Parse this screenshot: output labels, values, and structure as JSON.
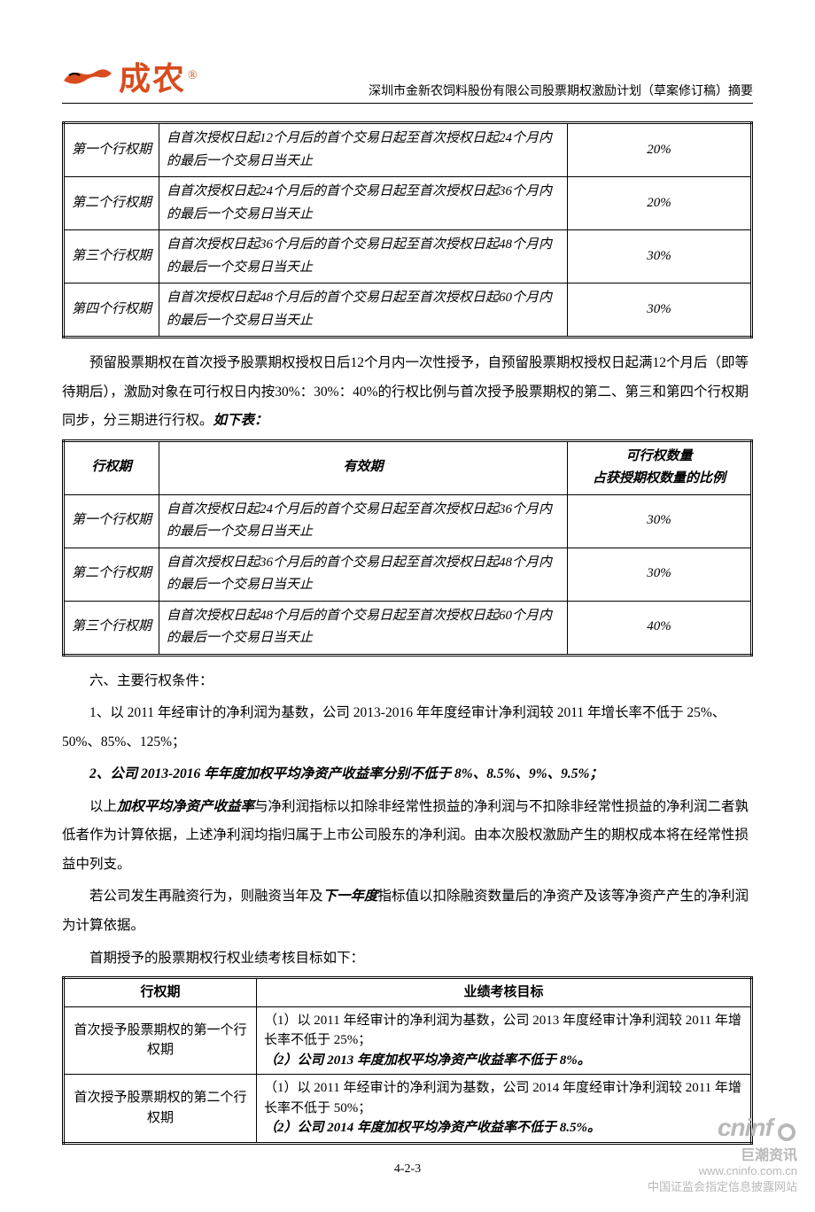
{
  "colors": {
    "logo_orange": "#d84c1e",
    "text": "#000000",
    "watermark": "#b8b8b8",
    "background": "#ffffff",
    "border": "#000000"
  },
  "header": {
    "logo_text": "成农",
    "logo_r": "®",
    "doc_title": "深圳市金新农饲料股份有限公司股票期权激励计划（草案修订稿）摘要"
  },
  "table1": {
    "rows": [
      {
        "period": "第一个行权期",
        "desc": "自首次授权日起12个月后的首个交易日起至首次授权日起24个月内的最后一个交易日当天止",
        "pct": "20%"
      },
      {
        "period": "第二个行权期",
        "desc": "自首次授权日起24个月后的首个交易日起至首次授权日起36个月内的最后一个交易日当天止",
        "pct": "20%"
      },
      {
        "period": "第三个行权期",
        "desc": "自首次授权日起36个月后的首个交易日起至首次授权日起48个月内的最后一个交易日当天止",
        "pct": "30%"
      },
      {
        "period": "第四个行权期",
        "desc": "自首次授权日起48个月后的首个交易日起至首次授权日起60个月内的最后一个交易日当天止",
        "pct": "30%"
      }
    ]
  },
  "para1": {
    "text_a": "预留股票期权在首次授予股票期权授权日后12个月内一次性授予，自预留股票期权授权日起满12个月后（即等待期后），激励对象在可行权日内按30%：30%：40%的行权比例与首次授予股票期权的第二、第三和第四个行权期同步，分三期进行行权。",
    "tail": "如下表："
  },
  "table2": {
    "head": {
      "c1": "行权期",
      "c2": "有效期",
      "c3a": "可行权数量",
      "c3b": "占获授期权数量的比例"
    },
    "rows": [
      {
        "period": "第一个行权期",
        "desc": "自首次授权日起24个月后的首个交易日起至首次授权日起36个月内的最后一个交易日当天止",
        "pct": "30%"
      },
      {
        "period": "第二个行权期",
        "desc": "自首次授权日起36个月后的首个交易日起至首次授权日起48个月内的最后一个交易日当天止",
        "pct": "30%"
      },
      {
        "period": "第三个行权期",
        "desc": "自首次授权日起48个月后的首个交易日起至首次授权日起60个月内的最后一个交易日当天止",
        "pct": "40%"
      }
    ]
  },
  "section6_title": "六、主要行权条件：",
  "item1": "1、以 2011 年经审计的净利润为基数，公司 2013-2016 年年度经审计净利润较 2011 年增长率不低于 25%、50%、85%、125%；",
  "item2_bold": "2、公司 2013-2016 年年度加权平均净资产收益率分别不低于 8%、8.5%、9%、9.5%；",
  "para_after_a": "以上",
  "para_after_bold": "加权平均净资产收益率",
  "para_after_b": "与净利润指标以扣除非经常性损益的净利润与不扣除非经常性损益的净利润二者孰低者作为计算依据，上述净利润均指归属于上市公司股东的净利润。由本次股权激励产生的期权成本将在经常性损益中列支。",
  "para_refinance_a": "若公司发生再融资行为，则融资当年及",
  "para_refinance_bold": "下一年度",
  "para_refinance_b": "指标值以扣除融资数量后的净资产及该等净资产产生的净利润为计算依据。",
  "para_firstgrant": "首期授予的股票期权行权业绩考核目标如下：",
  "table3": {
    "head": {
      "c1": "行权期",
      "c2": "业绩考核目标"
    },
    "rows": [
      {
        "period": "首次授予股票期权的第一个行权期",
        "l1": "（1）以 2011 年经审计的净利润为基数，公司 2013 年度经审计净利润较 2011 年增长率不低于 25%；",
        "l2": "（2）公司 2013 年度加权平均净资产收益率不低于 8%。"
      },
      {
        "period": "首次授予股票期权的第二个行权期",
        "l1": "（1）以 2011 年经审计的净利润为基数，公司 2014 年度经审计净利润较 2011 年增长率不低于 50%；",
        "l2": "（2）公司 2014 年度加权平均净资产收益率不低于 8.5%。"
      }
    ]
  },
  "page_num": "4-2-3",
  "watermark": {
    "brand": "cninf",
    "brand_cn": "巨潮资讯",
    "url": "www.cninfo.com.cn",
    "sub": "中国证监会指定信息披露网站"
  }
}
